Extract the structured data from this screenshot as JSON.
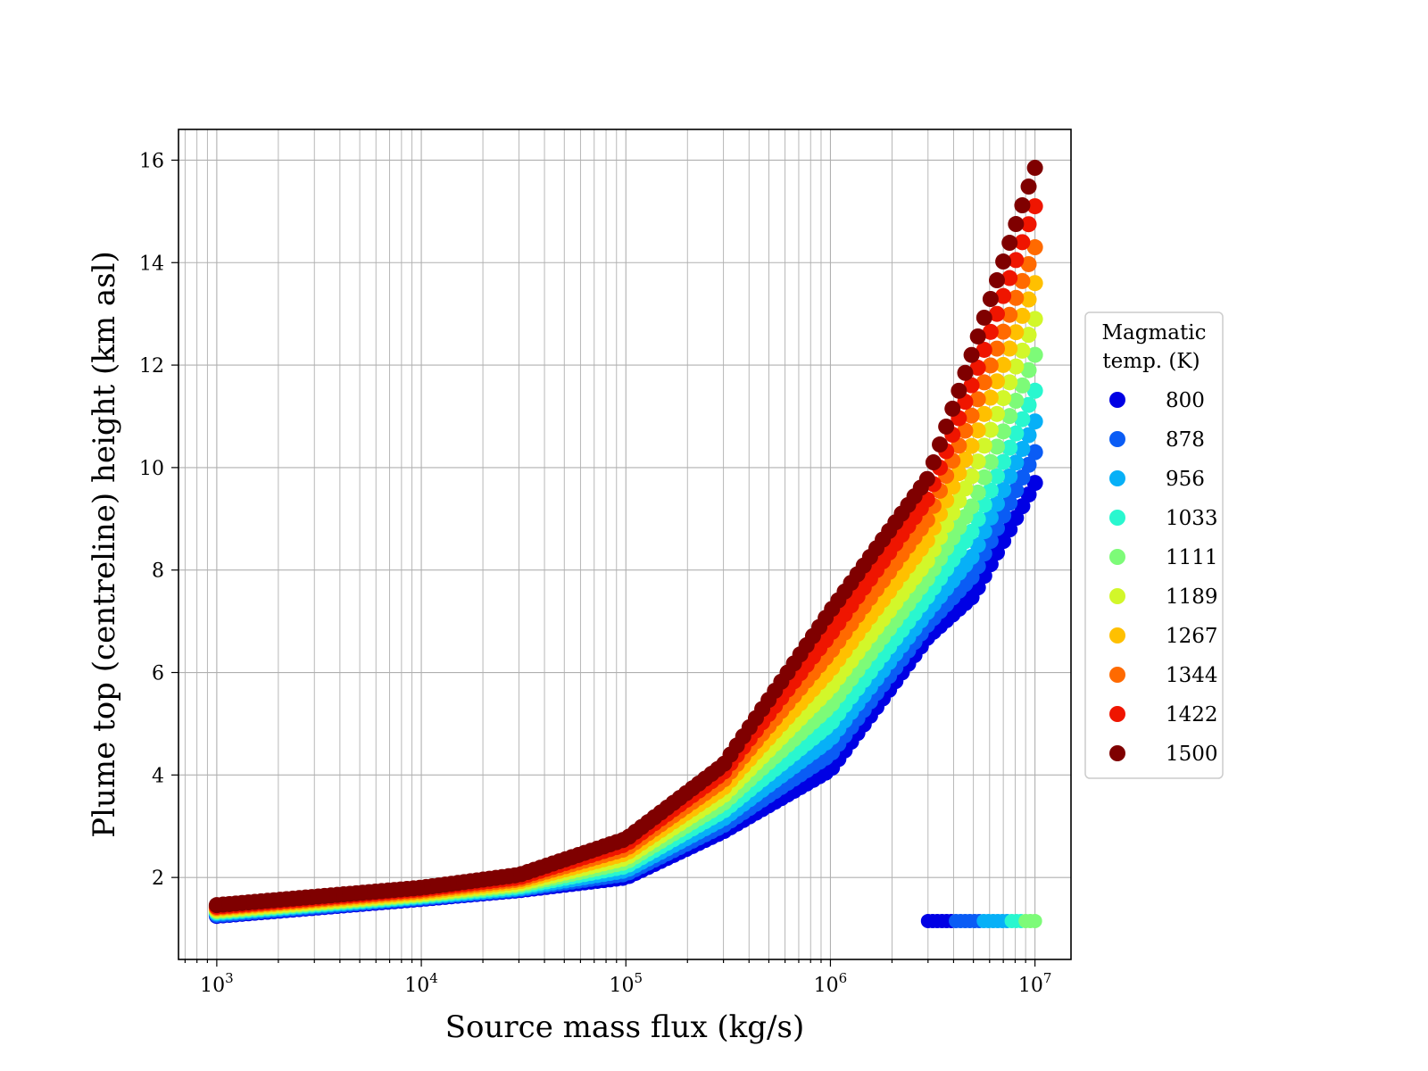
{
  "chart_data": {
    "type": "scatter",
    "xlabel": "Source mass flux (kg/s)",
    "ylabel": "Plume top (centreline) height (km asl)",
    "xscale": "log",
    "xlim": [
      650,
      15000000
    ],
    "ylim": [
      0.4,
      16.6
    ],
    "grid": true,
    "grid_minor_x": true,
    "x_ticks": [
      {
        "base": "10",
        "exp": "3",
        "value": 1000
      },
      {
        "base": "10",
        "exp": "4",
        "value": 10000
      },
      {
        "base": "10",
        "exp": "5",
        "value": 100000
      },
      {
        "base": "10",
        "exp": "6",
        "value": 1000000
      },
      {
        "base": "10",
        "exp": "7",
        "value": 10000000
      }
    ],
    "y_ticks": [
      2,
      4,
      6,
      8,
      10,
      12,
      14,
      16
    ],
    "legend": {
      "title_line1": "Magmatic",
      "title_line2": "temp. (K)",
      "placement": "outside-right",
      "entries": [
        {
          "label": "800",
          "color": "#0000e4"
        },
        {
          "label": "878",
          "color": "#0a5cf5"
        },
        {
          "label": "956",
          "color": "#07b0f7"
        },
        {
          "label": "1033",
          "color": "#29f7cf"
        },
        {
          "label": "1111",
          "color": "#7dfb78"
        },
        {
          "label": "1189",
          "color": "#d2f72a"
        },
        {
          "label": "1267",
          "color": "#ffc000"
        },
        {
          "label": "1344",
          "color": "#ff6a00"
        },
        {
          "label": "1422",
          "color": "#ef1500"
        },
        {
          "label": "1500",
          "color": "#7f0000"
        }
      ]
    },
    "series": [
      {
        "name": "800",
        "color": "#0000e4",
        "x": [
          1000,
          10000,
          30000,
          100000,
          300000,
          1000000,
          3000000,
          5000000,
          10000000
        ],
        "y": [
          1.25,
          1.58,
          1.75,
          2.0,
          2.9,
          4.1,
          6.7,
          7.5,
          9.7
        ]
      },
      {
        "name": "878",
        "color": "#0a5cf5",
        "x": [
          1000,
          10000,
          30000,
          100000,
          300000,
          1000000,
          3000000,
          5000000,
          10000000
        ],
        "y": [
          1.27,
          1.6,
          1.77,
          2.07,
          3.02,
          4.4,
          6.95,
          7.9,
          10.3
        ]
      },
      {
        "name": "956",
        "color": "#07b0f7",
        "x": [
          1000,
          10000,
          30000,
          100000,
          300000,
          1000000,
          3000000,
          5000000,
          10000000
        ],
        "y": [
          1.3,
          1.62,
          1.79,
          2.14,
          3.15,
          4.7,
          7.2,
          8.3,
          10.9
        ]
      },
      {
        "name": "1033",
        "color": "#29f7cf",
        "x": [
          1000,
          10000,
          30000,
          100000,
          300000,
          1000000,
          3000000,
          5000000,
          10000000
        ],
        "y": [
          1.32,
          1.64,
          1.82,
          2.22,
          3.3,
          5.0,
          7.5,
          8.8,
          11.5
        ]
      },
      {
        "name": "1111",
        "color": "#7dfb78",
        "x": [
          1000,
          10000,
          30000,
          100000,
          300000,
          1000000,
          3000000,
          5000000,
          10000000
        ],
        "y": [
          1.34,
          1.66,
          1.85,
          2.3,
          3.45,
          5.35,
          7.85,
          9.3,
          12.2
        ]
      },
      {
        "name": "1189",
        "color": "#d2f72a",
        "x": [
          1000,
          10000,
          30000,
          100000,
          300000,
          1000000,
          3000000,
          5000000,
          10000000
        ],
        "y": [
          1.36,
          1.68,
          1.88,
          2.38,
          3.6,
          5.7,
          8.2,
          9.9,
          12.9
        ]
      },
      {
        "name": "1267",
        "color": "#ffc000",
        "x": [
          1000,
          10000,
          30000,
          100000,
          300000,
          1000000,
          3000000,
          5000000,
          10000000
        ],
        "y": [
          1.39,
          1.71,
          1.92,
          2.47,
          3.75,
          6.05,
          8.6,
          10.5,
          13.6
        ]
      },
      {
        "name": "1344",
        "color": "#ff6a00",
        "x": [
          1000,
          10000,
          30000,
          100000,
          300000,
          1000000,
          3000000,
          5000000,
          10000000
        ],
        "y": [
          1.41,
          1.74,
          1.96,
          2.56,
          3.9,
          6.4,
          9.0,
          11.1,
          14.3
        ]
      },
      {
        "name": "1422",
        "color": "#ef1500",
        "x": [
          1000,
          10000,
          30000,
          100000,
          300000,
          1000000,
          3000000,
          5000000,
          10000000
        ],
        "y": [
          1.43,
          1.77,
          2.0,
          2.65,
          4.05,
          6.75,
          9.4,
          11.7,
          15.1
        ]
      },
      {
        "name": "1500",
        "color": "#7f0000",
        "x": [
          1000,
          10000,
          30000,
          100000,
          300000,
          1000000,
          3000000,
          5000000,
          10000000
        ],
        "y": [
          1.46,
          1.8,
          2.05,
          2.75,
          4.2,
          7.2,
          9.8,
          12.3,
          15.85
        ]
      }
    ],
    "collapsed_points": {
      "x_start": 3000000,
      "x_end": 10000000,
      "y": 1.15,
      "colors": [
        "#0000e4",
        "#0000e4",
        "#0a5cf5",
        "#0a5cf5",
        "#07b0f7",
        "#07b0f7",
        "#29f7cf",
        "#7dfb78"
      ]
    }
  }
}
